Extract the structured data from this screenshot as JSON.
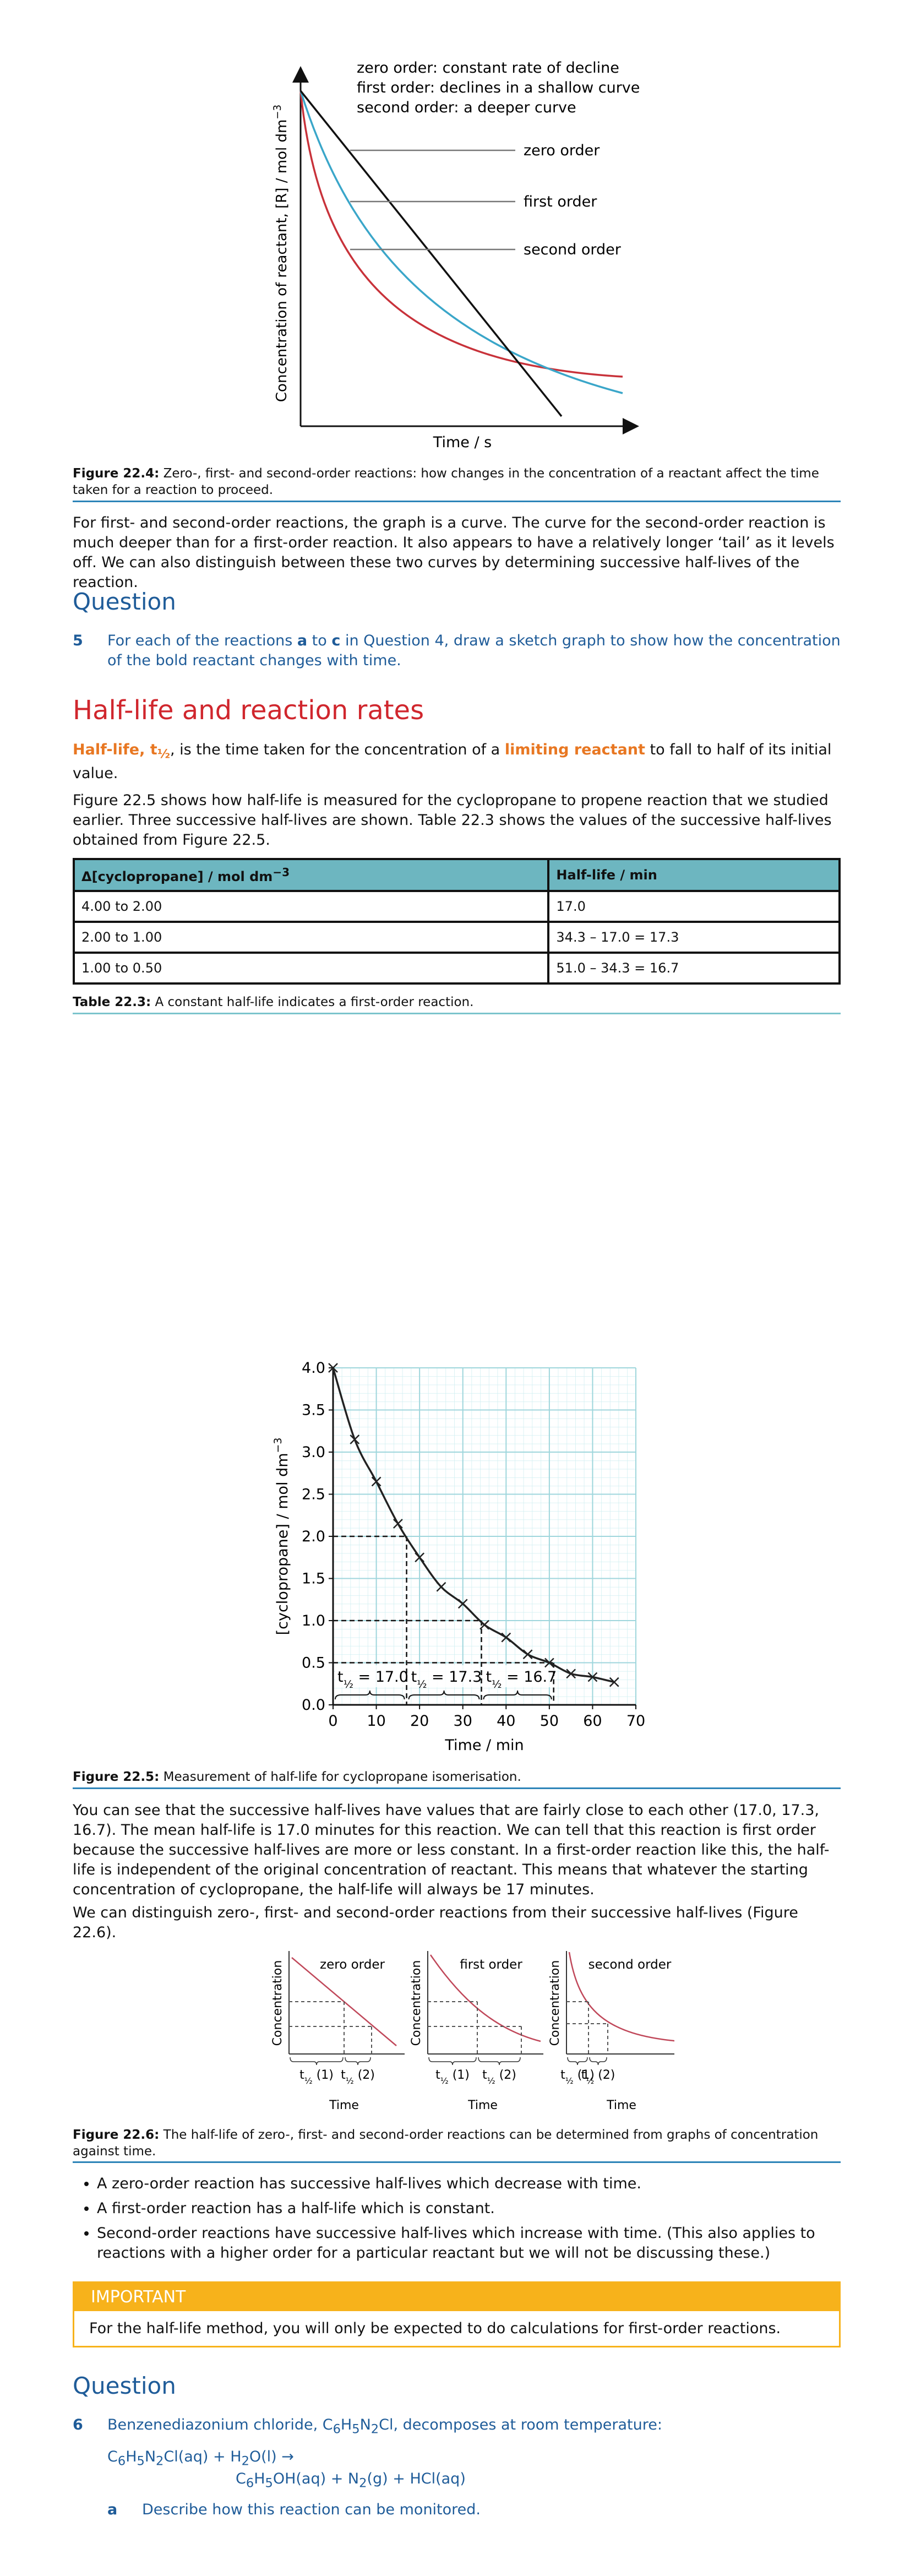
{
  "figure_22_4": {
    "annotations": [
      "zero order: constant rate of decline",
      "first order: declines in a shallow curve",
      "second order: a deeper curve"
    ],
    "labels": [
      "zero order",
      "first order",
      "second order"
    ],
    "y_label_parts": [
      "Concentration of reactant, [R] / mol dm",
      "−3"
    ],
    "x_label": "Time / s",
    "caption_label": "Figure 22.4:",
    "caption": " Zero-, first- and second-order reactions: how changes in the concentration of a reactant affect the time taken for a reaction to proceed."
  },
  "paragraph_1": "For first- and second-order reactions, the graph is a curve. The curve for the second-order reaction is much deeper than for a first-order reaction. It also appears to have a relatively longer ‘tail’ as it levels off. We can also distinguish between these two curves by determining successive half-lives of the reaction.",
  "question_5": {
    "heading": "Question",
    "number": "5",
    "parts": [
      "For each of the reactions ",
      "a",
      " to ",
      "c",
      " in Question 4, draw a sketch graph to show how the concentration of the bold reactant changes with time."
    ]
  },
  "section_title": "Half-life and reaction rates",
  "definition": {
    "term_parts": [
      "Half-life, t",
      "½"
    ],
    "text_1": ", is the time taken for the concentration of a ",
    "term_2": "limiting reactant",
    "text_2": " to fall to half of its initial value."
  },
  "paragraph_2": "Figure 22.5 shows how half-life is measured for the cyclopropane to propene reaction that we studied earlier. Three successive half-lives are shown. Table 22.3 shows the values of the successive half-lives obtained from Figure 22.5.",
  "table": {
    "header_parts": [
      [
        "Δ[cyclopropane] / mol dm",
        "−3"
      ],
      [
        "Half-life / min"
      ]
    ],
    "rows": [
      [
        "4.00 to 2.00",
        "17.0"
      ],
      [
        "2.00 to 1.00",
        "34.3 – 17.0 = 17.3"
      ],
      [
        "1.00 to 0.50",
        "51.0 – 34.3 = 16.7"
      ]
    ],
    "caption_label": "Table 22.3:",
    "caption": " A constant half-life indicates a first-order reaction."
  },
  "figure_22_5": {
    "type": "scatter",
    "x": [
      0,
      5,
      10,
      15,
      20,
      25,
      30,
      35,
      40,
      45,
      50,
      55,
      60,
      65
    ],
    "values": [
      4.0,
      3.15,
      2.65,
      2.15,
      1.75,
      1.4,
      1.2,
      0.95,
      0.8,
      0.6,
      0.5,
      0.37,
      0.33,
      0.27
    ],
    "xlim": [
      0,
      70
    ],
    "ylim": [
      0,
      4
    ],
    "xticks": [
      0,
      10,
      20,
      30,
      40,
      50,
      60,
      70
    ],
    "yticks": [
      {
        "value": 0,
        "label": "0.0"
      },
      {
        "value": 0.5,
        "label": "0.5"
      },
      {
        "value": 1,
        "label": "1.0"
      },
      {
        "value": 1.5,
        "label": "1.5"
      },
      {
        "value": 2,
        "label": "2.0"
      },
      {
        "value": 2.5,
        "label": "2.5"
      },
      {
        "value": 3,
        "label": "3.0"
      },
      {
        "value": 3.5,
        "label": "3.5"
      },
      {
        "value": 4,
        "label": "4.0"
      }
    ],
    "grid": true,
    "color": "#222222",
    "guides": {
      "concentrations": [
        2,
        1,
        0.5
      ],
      "times": [
        17,
        34.3,
        51
      ]
    },
    "half_life_labels": [
      [
        "t",
        "½",
        " = 17.0"
      ],
      [
        "t",
        "½",
        " = 17.3"
      ],
      [
        "t",
        "½",
        " = 16.7"
      ]
    ],
    "y_label_parts": [
      "[cyclopropane] / mol dm",
      "−3"
    ],
    "x_label": "Time / min",
    "caption_label": "Figure 22.5:",
    "caption": " Measurement of half-life for cyclopropane isomerisation."
  },
  "paragraph_3": "You can see that the successive half-lives have values that are fairly close to each other (17.0, 17.3, 16.7). The mean half-life is 17.0 minutes for this reaction. We can tell that this reaction is first order because the successive half-lives are more or less constant. In a first-order reaction like this, the half-life is independent of the original concentration of reactant. This means that whatever the starting concentration of cyclopropane, the half-life will always be 17 minutes.",
  "paragraph_4": "We can distinguish zero-, first- and second-order reactions from their successive half-lives (Figure 22.6).",
  "figure_22_6": {
    "panels": [
      {
        "title": "zero order",
        "half_life_labels": [
          [
            "t",
            "½",
            " (1)"
          ],
          [
            "t",
            "½",
            " (2)"
          ]
        ]
      },
      {
        "title": "first order",
        "half_life_labels": [
          [
            "t",
            "½",
            " (1)"
          ],
          [
            "t",
            "½",
            " (2)"
          ]
        ]
      },
      {
        "title": "second order",
        "half_life_labels": [
          [
            "t",
            "½",
            " (1)"
          ],
          [
            "t",
            "½",
            " (2)"
          ]
        ]
      }
    ],
    "y_label": "Concentration",
    "x_label": "Time",
    "caption_label": "Figure 22.6:",
    "caption": " The half-life of zero-, first- and second-order reactions can be determined from graphs of concentration against time."
  },
  "bullets": [
    "A zero-order reaction has successive half-lives which decrease with time.",
    "A first-order reaction has a half-life which is constant.",
    "Second-order reactions have successive half-lives which increase with time. (This also applies to reactions with a higher order for a particular reactant but we will not be discussing these.)"
  ],
  "important": {
    "title": "IMPORTANT",
    "text": "For the half-life method, you will only be expected to do calculations for first-order reactions."
  },
  "question_6": {
    "heading": "Question",
    "number": "6",
    "stem_parts": [
      "Benzenediazonium chloride, C",
      "6",
      "H",
      "5",
      "N",
      "2",
      "Cl, decomposes at room temperature:"
    ],
    "equation_line_1": [
      "C",
      "6",
      "H",
      "5",
      "N",
      "2",
      "Cl(aq) + H",
      "2",
      "O(l) →"
    ],
    "equation_line_2": [
      "C",
      "6",
      "H",
      "5",
      "OH(aq) + N",
      "2",
      "(g) + HCl(aq)"
    ],
    "part_a_label": "a",
    "part_a": "Describe how this reaction can be monitored."
  }
}
